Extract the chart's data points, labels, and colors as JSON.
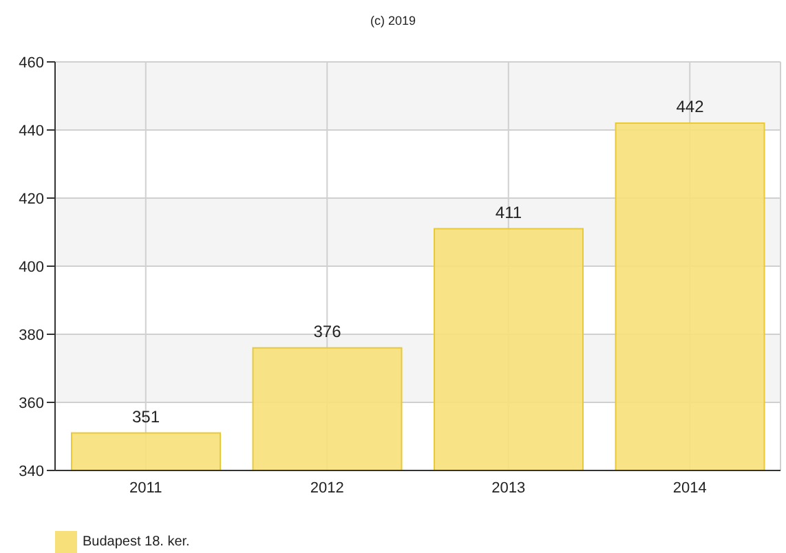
{
  "chart_data": {
    "type": "bar",
    "annotations": [
      "(c) 2019"
    ],
    "categories": [
      "2011",
      "2012",
      "2013",
      "2014"
    ],
    "series": [
      {
        "name": "Budapest 18. ker.",
        "color": "#f7e07a",
        "values": [
          351,
          376,
          411,
          442
        ]
      }
    ],
    "ylim": [
      340,
      460
    ],
    "yticks": [
      340,
      360,
      380,
      400,
      420,
      440,
      460
    ],
    "grid": true,
    "data_labels": true,
    "legend": "bottom left"
  }
}
